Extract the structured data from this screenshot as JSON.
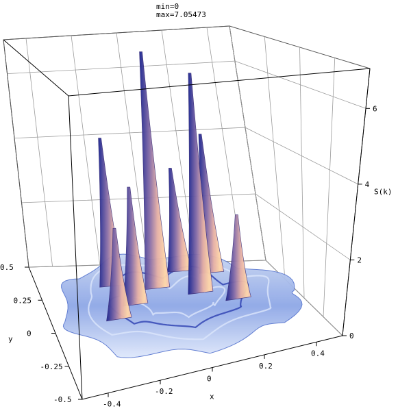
{
  "chart_data": {
    "type": "surface3d",
    "title_lines": [
      "min=0",
      "max=7.05473"
    ],
    "xlabel": "x",
    "ylabel": "y",
    "zlabel": "S(k)",
    "x_ticks": [
      "-0.4",
      "-0.2",
      "0",
      "0.2",
      "0.4"
    ],
    "x_tick_values": [
      -0.4,
      -0.2,
      0,
      0.2,
      0.4
    ],
    "y_ticks": [
      "0.5",
      "0.25",
      "0",
      "-0.25",
      "-0.5"
    ],
    "y_tick_values": [
      0.5,
      0.25,
      0,
      -0.25,
      -0.5
    ],
    "z_ticks": [
      "0",
      "2",
      "4",
      "6"
    ],
    "z_tick_values": [
      0,
      2,
      4,
      6
    ],
    "xlim": [
      -0.5,
      0.5
    ],
    "ylim": [
      -0.5,
      0.5
    ],
    "zlim": [
      0,
      7.05473
    ],
    "z_min": 0,
    "z_max": 7.05473,
    "peaks": [
      {
        "x": -0.05,
        "y": 0.14,
        "z": 7.05
      },
      {
        "x": 0.1,
        "y": 0.05,
        "z": 6.5
      },
      {
        "x": -0.22,
        "y": 0.2,
        "z": 4.6
      },
      {
        "x": 0.2,
        "y": 0.24,
        "z": 4.4
      },
      {
        "x": -0.17,
        "y": 0.02,
        "z": 3.6
      },
      {
        "x": 0.08,
        "y": 0.28,
        "z": 3.4
      },
      {
        "x": -0.26,
        "y": -0.08,
        "z": 2.8
      },
      {
        "x": 0.22,
        "y": -0.06,
        "z": 2.7
      }
    ],
    "grid": true,
    "box": true,
    "colors": {
      "peak_face": "#e8b4a8",
      "peak_shadow": "#2a2a8a",
      "base_light": "#c8d8f0",
      "base_mid": "#7f9fe0",
      "base_dark": "#1e2fa0",
      "highlight": "#ffe0a0",
      "grid_line": "#888888"
    }
  }
}
